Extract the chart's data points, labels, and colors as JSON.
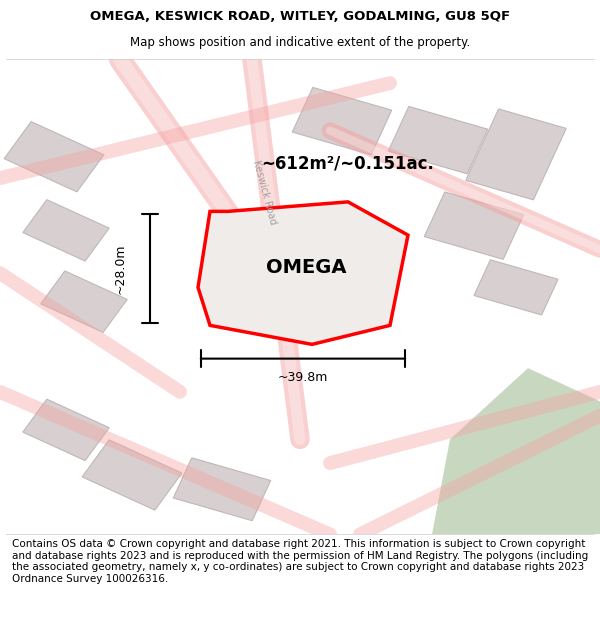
{
  "title_line1": "OMEGA, KESWICK ROAD, WITLEY, GODALMING, GU8 5QF",
  "title_line2": "Map shows position and indicative extent of the property.",
  "property_label": "OMEGA",
  "area_label": "~612m²/~0.151ac.",
  "width_label": "~39.8m",
  "height_label": "~28.0m",
  "footer_text": "Contains OS data © Crown copyright and database right 2021. This information is subject to Crown copyright and database rights 2023 and is reproduced with the permission of HM Land Registry. The polygons (including the associated geometry, namely x, y co-ordinates) are subject to Crown copyright and database rights 2023 Ordnance Survey 100026316.",
  "background_color": "#f5f0f0",
  "map_bg": "#f8f4f4",
  "property_fill": "#f0eeee",
  "property_edge": "#ff0000",
  "road_color": "#f5a0a0",
  "building_color": "#d8d0d0",
  "green_color": "#c8d8c0",
  "title_fontsize": 9.5,
  "subtitle_fontsize": 8.5,
  "label_fontsize": 11,
  "area_fontsize": 13,
  "footer_fontsize": 7.5
}
